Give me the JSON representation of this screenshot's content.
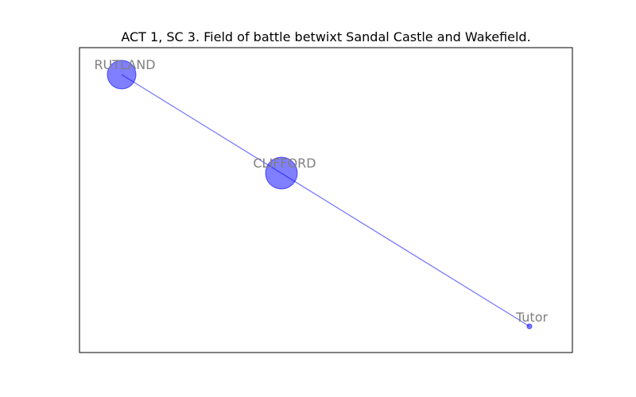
{
  "title": "ACT 1, SC 3. Field of battle betwixt Sandal Castle and Wakefield.",
  "colors": {
    "node_fill": "#0000ff",
    "node_opacity": 0.5,
    "edge": "#0000ff",
    "label": "#808080",
    "frame": "#000000"
  },
  "nodes": [
    {
      "id": "rutland",
      "label": "RUTLAND"
    },
    {
      "id": "clifford",
      "label": "CLIFFORD"
    },
    {
      "id": "tutor",
      "label": "Tutor"
    }
  ],
  "edges": [
    {
      "source": "rutland",
      "target": "tutor"
    }
  ]
}
